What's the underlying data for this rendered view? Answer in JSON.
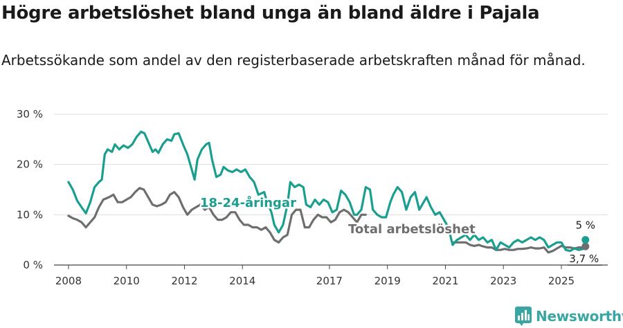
{
  "header": {
    "title": "Högre arbetslöshet bland unga än bland äldre i Pajala",
    "subtitle": "Arbetssökande som andel av den registerbaserade arbetskraften månad för månad."
  },
  "brand": {
    "name": "Newsworthy",
    "logo_icon": "bar-chart-logo-icon"
  },
  "colors": {
    "youth": "#1a9e8f",
    "total": "#6e6e6e",
    "grid": "#dcdcdc",
    "axis": "#444444"
  },
  "chart_data": {
    "type": "line",
    "title": "Högre arbetslöshet bland unga än bland äldre i Pajala",
    "xlabel": "",
    "ylabel": "",
    "xlim": [
      2007.5,
      2026.6
    ],
    "ylim": [
      0,
      30
    ],
    "yticks": [
      0,
      10,
      20,
      30
    ],
    "ytick_labels": [
      "0 %",
      "10 %",
      "20 %",
      "30 %"
    ],
    "xticks": [
      2008,
      2010,
      2012,
      2014,
      2017,
      2019,
      2021,
      2023,
      2025
    ],
    "xtick_labels": [
      "2008",
      "2010",
      "2012",
      "2014",
      "2017",
      "2019",
      "2021",
      "2023",
      "2025"
    ],
    "grid": true,
    "series": [
      {
        "name": "18-24-åringar",
        "label": "18-24-åringar",
        "color": "#1a9e8f",
        "end_label": "5 %",
        "points": [
          [
            2008.0,
            16.5
          ],
          [
            2008.15,
            15.0
          ],
          [
            2008.3,
            12.8
          ],
          [
            2008.45,
            11.5
          ],
          [
            2008.6,
            10.3
          ],
          [
            2008.75,
            12.5
          ],
          [
            2008.9,
            15.5
          ],
          [
            2009.05,
            16.5
          ],
          [
            2009.15,
            17.0
          ],
          [
            2009.25,
            22.0
          ],
          [
            2009.35,
            23.0
          ],
          [
            2009.5,
            22.5
          ],
          [
            2009.6,
            24.0
          ],
          [
            2009.75,
            23.0
          ],
          [
            2009.9,
            23.8
          ],
          [
            2010.05,
            23.3
          ],
          [
            2010.2,
            24.0
          ],
          [
            2010.35,
            25.5
          ],
          [
            2010.5,
            26.5
          ],
          [
            2010.62,
            26.2
          ],
          [
            2010.75,
            24.5
          ],
          [
            2010.9,
            22.5
          ],
          [
            2011.0,
            23.0
          ],
          [
            2011.1,
            22.3
          ],
          [
            2011.25,
            24.0
          ],
          [
            2011.4,
            25.0
          ],
          [
            2011.55,
            24.7
          ],
          [
            2011.65,
            26.0
          ],
          [
            2011.8,
            26.2
          ],
          [
            2011.95,
            24.0
          ],
          [
            2012.1,
            22.0
          ],
          [
            2012.25,
            19.0
          ],
          [
            2012.35,
            17.0
          ],
          [
            2012.45,
            21.0
          ],
          [
            2012.6,
            23.0
          ],
          [
            2012.75,
            24.0
          ],
          [
            2012.85,
            24.3
          ],
          [
            2012.95,
            21.0
          ],
          [
            2013.1,
            17.5
          ],
          [
            2013.25,
            18.0
          ],
          [
            2013.35,
            19.5
          ],
          [
            2013.5,
            18.8
          ],
          [
            2013.65,
            18.5
          ],
          [
            2013.8,
            19.0
          ],
          [
            2013.95,
            18.5
          ],
          [
            2014.1,
            19.0
          ],
          [
            2014.25,
            17.5
          ],
          [
            2014.4,
            16.5
          ],
          [
            2014.55,
            14.0
          ],
          [
            2014.75,
            14.5
          ],
          [
            2014.85,
            12.5
          ],
          [
            2015.0,
            10.5
          ],
          [
            2015.1,
            8.0
          ],
          [
            2015.25,
            6.5
          ],
          [
            2015.4,
            8.0
          ],
          [
            2015.55,
            12.0
          ],
          [
            2015.65,
            16.5
          ],
          [
            2015.8,
            15.5
          ],
          [
            2015.95,
            16.0
          ],
          [
            2016.1,
            15.5
          ],
          [
            2016.2,
            12.0
          ],
          [
            2016.35,
            11.5
          ],
          [
            2016.5,
            13.0
          ],
          [
            2016.65,
            12.0
          ],
          [
            2016.8,
            13.0
          ],
          [
            2016.95,
            12.5
          ],
          [
            2017.1,
            10.5
          ],
          [
            2017.25,
            11.0
          ],
          [
            2017.4,
            14.8
          ],
          [
            2017.55,
            14.0
          ],
          [
            2017.7,
            12.5
          ],
          [
            2017.85,
            10.0
          ],
          [
            2017.95,
            10.0
          ],
          [
            2018.1,
            11.0
          ],
          [
            2018.25,
            15.5
          ],
          [
            2018.4,
            15.0
          ],
          [
            2018.5,
            11.0
          ],
          [
            2018.65,
            10.0
          ],
          [
            2018.8,
            9.5
          ],
          [
            2018.95,
            9.5
          ],
          [
            2019.1,
            12.5
          ],
          [
            2019.2,
            14.0
          ],
          [
            2019.35,
            15.5
          ],
          [
            2019.5,
            14.5
          ],
          [
            2019.65,
            11.0
          ],
          [
            2019.8,
            13.5
          ],
          [
            2019.95,
            14.5
          ],
          [
            2020.1,
            11.0
          ],
          [
            2020.2,
            12.0
          ],
          [
            2020.35,
            13.5
          ],
          [
            2020.5,
            11.5
          ],
          [
            2020.65,
            10.0
          ],
          [
            2020.8,
            10.5
          ],
          [
            2020.95,
            9.0
          ],
          [
            2021.1,
            7.5
          ],
          [
            2021.25,
            4.0
          ],
          [
            2021.4,
            5.0
          ],
          [
            2021.55,
            5.5
          ],
          [
            2021.7,
            6.0
          ],
          [
            2021.85,
            5.0
          ],
          [
            2022.0,
            6.0
          ],
          [
            2022.15,
            5.0
          ],
          [
            2022.3,
            5.5
          ],
          [
            2022.45,
            4.5
          ],
          [
            2022.6,
            5.0
          ],
          [
            2022.75,
            3.0
          ],
          [
            2022.9,
            4.5
          ],
          [
            2023.05,
            4.0
          ],
          [
            2023.2,
            3.5
          ],
          [
            2023.35,
            4.5
          ],
          [
            2023.5,
            5.0
          ],
          [
            2023.65,
            4.5
          ],
          [
            2023.8,
            5.0
          ],
          [
            2023.95,
            5.5
          ],
          [
            2024.1,
            5.0
          ],
          [
            2024.25,
            5.5
          ],
          [
            2024.4,
            5.0
          ],
          [
            2024.55,
            3.5
          ],
          [
            2024.7,
            4.0
          ],
          [
            2024.85,
            4.5
          ],
          [
            2025.0,
            4.5
          ],
          [
            2025.15,
            3.0
          ],
          [
            2025.3,
            2.8
          ],
          [
            2025.45,
            3.3
          ],
          [
            2025.6,
            3.0
          ],
          [
            2025.75,
            3.2
          ],
          [
            2025.83,
            5.0
          ]
        ]
      },
      {
        "name": "Total arbetslöshet",
        "label": "Total arbetslöshet",
        "color": "#6e6e6e",
        "end_label": "3,7 %",
        "points": [
          [
            2008.0,
            9.8
          ],
          [
            2008.15,
            9.3
          ],
          [
            2008.3,
            9.0
          ],
          [
            2008.45,
            8.5
          ],
          [
            2008.6,
            7.5
          ],
          [
            2008.75,
            8.5
          ],
          [
            2008.9,
            9.5
          ],
          [
            2009.05,
            11.5
          ],
          [
            2009.2,
            13.0
          ],
          [
            2009.4,
            13.5
          ],
          [
            2009.55,
            14.0
          ],
          [
            2009.7,
            12.5
          ],
          [
            2009.85,
            12.5
          ],
          [
            2010.0,
            13.0
          ],
          [
            2010.15,
            13.5
          ],
          [
            2010.3,
            14.5
          ],
          [
            2010.45,
            15.3
          ],
          [
            2010.6,
            15.0
          ],
          [
            2010.75,
            13.5
          ],
          [
            2010.9,
            12.0
          ],
          [
            2011.05,
            11.7
          ],
          [
            2011.2,
            12.0
          ],
          [
            2011.35,
            12.5
          ],
          [
            2011.5,
            14.0
          ],
          [
            2011.65,
            14.5
          ],
          [
            2011.8,
            13.5
          ],
          [
            2011.95,
            11.5
          ],
          [
            2012.1,
            10.0
          ],
          [
            2012.25,
            11.0
          ],
          [
            2012.4,
            11.5
          ],
          [
            2012.55,
            12.0
          ],
          [
            2012.7,
            11.0
          ],
          [
            2012.85,
            11.5
          ],
          [
            2013.0,
            10.0
          ],
          [
            2013.15,
            9.0
          ],
          [
            2013.3,
            9.0
          ],
          [
            2013.45,
            9.5
          ],
          [
            2013.6,
            10.5
          ],
          [
            2013.75,
            10.5
          ],
          [
            2013.9,
            9.0
          ],
          [
            2014.05,
            8.0
          ],
          [
            2014.2,
            8.0
          ],
          [
            2014.35,
            7.5
          ],
          [
            2014.5,
            7.5
          ],
          [
            2014.65,
            7.0
          ],
          [
            2014.8,
            7.5
          ],
          [
            2014.95,
            6.5
          ],
          [
            2015.1,
            5.0
          ],
          [
            2015.25,
            4.5
          ],
          [
            2015.4,
            5.5
          ],
          [
            2015.55,
            6.0
          ],
          [
            2015.7,
            10.0
          ],
          [
            2015.85,
            11.0
          ],
          [
            2016.0,
            11.0
          ],
          [
            2016.15,
            7.5
          ],
          [
            2016.3,
            7.5
          ],
          [
            2016.45,
            9.0
          ],
          [
            2016.6,
            10.0
          ],
          [
            2016.75,
            9.5
          ],
          [
            2016.9,
            9.5
          ],
          [
            2017.05,
            8.5
          ],
          [
            2017.2,
            9.0
          ],
          [
            2017.35,
            10.5
          ],
          [
            2017.5,
            11.0
          ],
          [
            2017.65,
            10.5
          ],
          [
            2017.8,
            9.5
          ],
          [
            2017.95,
            8.5
          ],
          [
            2018.1,
            10.0
          ],
          [
            2018.25,
            10.0
          ]
        ]
      },
      {
        "name": "Total arbetslöshet (2021–2025)",
        "label": "",
        "color": "#6e6e6e",
        "end_label": "",
        "points": [
          [
            2021.25,
            4.5
          ],
          [
            2021.4,
            4.5
          ],
          [
            2021.55,
            4.5
          ],
          [
            2021.7,
            4.5
          ],
          [
            2021.85,
            4.0
          ],
          [
            2022.0,
            3.8
          ],
          [
            2022.15,
            4.0
          ],
          [
            2022.3,
            3.7
          ],
          [
            2022.45,
            3.5
          ],
          [
            2022.6,
            3.5
          ],
          [
            2022.75,
            3.0
          ],
          [
            2022.9,
            3.0
          ],
          [
            2023.05,
            3.2
          ],
          [
            2023.2,
            3.0
          ],
          [
            2023.35,
            3.0
          ],
          [
            2023.5,
            3.2
          ],
          [
            2023.65,
            3.2
          ],
          [
            2023.8,
            3.3
          ],
          [
            2023.95,
            3.5
          ],
          [
            2024.1,
            3.3
          ],
          [
            2024.25,
            3.3
          ],
          [
            2024.4,
            3.5
          ],
          [
            2024.55,
            2.5
          ],
          [
            2024.7,
            2.8
          ],
          [
            2024.85,
            3.3
          ],
          [
            2025.0,
            3.8
          ],
          [
            2025.15,
            3.5
          ],
          [
            2025.3,
            3.5
          ],
          [
            2025.45,
            3.3
          ],
          [
            2025.6,
            3.5
          ],
          [
            2025.75,
            3.5
          ],
          [
            2025.83,
            3.7
          ]
        ]
      }
    ]
  }
}
